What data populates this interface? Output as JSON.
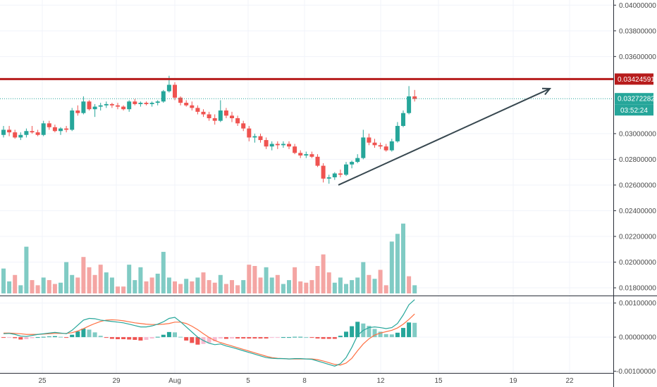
{
  "chart_data": [
    {
      "type": "candlestick",
      "xaxis_ticks": [
        "25",
        "29",
        "Aug",
        "5",
        "8",
        "12",
        "15",
        "19",
        "22"
      ],
      "ylim": [
        0.0174,
        0.0404
      ],
      "ytick_labels": [
        "0.04000000",
        "0.03800000",
        "0.03600000",
        "0.03424591",
        "0.03272282",
        "03:52:24",
        "0.03000000",
        "0.02800000",
        "0.02600000",
        "0.02400000",
        "0.02200000",
        "0.02000000",
        "0.01800000"
      ],
      "yticks": [
        0.04,
        0.038,
        0.036,
        0.03,
        0.028,
        0.026,
        0.024,
        0.022,
        0.02,
        0.018
      ],
      "resistance_level": 0.03424591,
      "last_price": 0.03272282,
      "countdown": "03:52:24",
      "colors": {
        "up": "#26a69a",
        "down": "#ef5350",
        "resistance": "#b71c1c",
        "arrow": "#37474f",
        "tag_bg": "#26a69a",
        "resistance_tag_bg": "#b71c1c"
      },
      "candles": [
        [
          0.0299,
          0.0306,
          0.0297,
          0.0303
        ],
        [
          0.0303,
          0.0306,
          0.0298,
          0.0301
        ],
        [
          0.0301,
          0.0303,
          0.0296,
          0.0297
        ],
        [
          0.0297,
          0.0301,
          0.0295,
          0.0299
        ],
        [
          0.0299,
          0.0304,
          0.0297,
          0.0302
        ],
        [
          0.0302,
          0.0306,
          0.03,
          0.0301
        ],
        [
          0.0301,
          0.0303,
          0.0298,
          0.0299
        ],
        [
          0.0299,
          0.031,
          0.0298,
          0.0308
        ],
        [
          0.0308,
          0.031,
          0.0303,
          0.0305
        ],
        [
          0.0305,
          0.0307,
          0.0301,
          0.0302
        ],
        [
          0.0302,
          0.0305,
          0.0299,
          0.0304
        ],
        [
          0.0304,
          0.0306,
          0.0301,
          0.0303
        ],
        [
          0.0303,
          0.032,
          0.0302,
          0.0318
        ],
        [
          0.0318,
          0.0322,
          0.0314,
          0.0316
        ],
        [
          0.0316,
          0.0329,
          0.0315,
          0.0325
        ],
        [
          0.0325,
          0.0326,
          0.0318,
          0.0319
        ],
        [
          0.0319,
          0.0323,
          0.0313,
          0.0321
        ],
        [
          0.0321,
          0.0324,
          0.0318,
          0.0322
        ],
        [
          0.0322,
          0.0325,
          0.032,
          0.0323
        ],
        [
          0.0323,
          0.0324,
          0.032,
          0.0322
        ],
        [
          0.0322,
          0.0324,
          0.0319,
          0.0321
        ],
        [
          0.0321,
          0.0322,
          0.0318,
          0.0319
        ],
        [
          0.0319,
          0.0326,
          0.0317,
          0.0325
        ],
        [
          0.0325,
          0.0327,
          0.0322,
          0.0323
        ],
        [
          0.0323,
          0.0325,
          0.0321,
          0.0324
        ],
        [
          0.0324,
          0.0325,
          0.0322,
          0.0323
        ],
        [
          0.0323,
          0.0325,
          0.0321,
          0.0324
        ],
        [
          0.0324,
          0.0326,
          0.0322,
          0.0325
        ],
        [
          0.0325,
          0.0334,
          0.0324,
          0.0333
        ],
        [
          0.0333,
          0.0345,
          0.0332,
          0.0338
        ],
        [
          0.0338,
          0.034,
          0.0326,
          0.0328
        ],
        [
          0.0328,
          0.0329,
          0.0322,
          0.0324
        ],
        [
          0.0324,
          0.0326,
          0.0321,
          0.0322
        ],
        [
          0.0322,
          0.0325,
          0.0318,
          0.032
        ],
        [
          0.032,
          0.0322,
          0.0315,
          0.0317
        ],
        [
          0.0317,
          0.0319,
          0.0313,
          0.0315
        ],
        [
          0.0315,
          0.0317,
          0.031,
          0.0312
        ],
        [
          0.0312,
          0.0315,
          0.0307,
          0.031
        ],
        [
          0.031,
          0.0326,
          0.0309,
          0.0318
        ],
        [
          0.0318,
          0.032,
          0.0312,
          0.0314
        ],
        [
          0.0314,
          0.0317,
          0.0309,
          0.0312
        ],
        [
          0.0312,
          0.0314,
          0.0306,
          0.0308
        ],
        [
          0.0308,
          0.031,
          0.0302,
          0.0304
        ],
        [
          0.0304,
          0.0306,
          0.0294,
          0.0297
        ],
        [
          0.0297,
          0.03,
          0.0293,
          0.0298
        ],
        [
          0.0298,
          0.03,
          0.0293,
          0.0295
        ],
        [
          0.0295,
          0.0297,
          0.0288,
          0.029
        ],
        [
          0.029,
          0.0294,
          0.0287,
          0.0292
        ],
        [
          0.0292,
          0.0294,
          0.0288,
          0.0291
        ],
        [
          0.0291,
          0.0294,
          0.0289,
          0.0292
        ],
        [
          0.0292,
          0.0294,
          0.0288,
          0.029
        ],
        [
          0.029,
          0.0292,
          0.0284,
          0.0285
        ],
        [
          0.0285,
          0.0287,
          0.0281,
          0.0283
        ],
        [
          0.0283,
          0.0286,
          0.0281,
          0.0284
        ],
        [
          0.0284,
          0.0286,
          0.0281,
          0.0282
        ],
        [
          0.0282,
          0.0284,
          0.0274,
          0.0275
        ],
        [
          0.0275,
          0.0277,
          0.0262,
          0.0265
        ],
        [
          0.0265,
          0.0268,
          0.0261,
          0.0266
        ],
        [
          0.0266,
          0.027,
          0.0264,
          0.0269
        ],
        [
          0.0269,
          0.0272,
          0.0266,
          0.0268
        ],
        [
          0.0268,
          0.0278,
          0.0267,
          0.0276
        ],
        [
          0.0276,
          0.0279,
          0.0273,
          0.0278
        ],
        [
          0.0278,
          0.0284,
          0.0277,
          0.0281
        ],
        [
          0.0281,
          0.0303,
          0.028,
          0.0297
        ],
        [
          0.0297,
          0.03,
          0.0291,
          0.0293
        ],
        [
          0.0293,
          0.0296,
          0.0289,
          0.0291
        ],
        [
          0.0291,
          0.0293,
          0.0288,
          0.029
        ],
        [
          0.029,
          0.0292,
          0.0286,
          0.0287
        ],
        [
          0.0287,
          0.0296,
          0.0286,
          0.0294
        ],
        [
          0.0294,
          0.0309,
          0.0293,
          0.0306
        ],
        [
          0.0306,
          0.0318,
          0.0305,
          0.0316
        ],
        [
          0.0316,
          0.0337,
          0.0315,
          0.0329
        ],
        [
          0.0329,
          0.0334,
          0.0325,
          0.0327
        ]
      ],
      "volumes": [
        [
          0.0195,
          "up"
        ],
        [
          0.0185,
          "up"
        ],
        [
          0.019,
          "down"
        ],
        [
          0.0182,
          "up"
        ],
        [
          0.0212,
          "up"
        ],
        [
          0.0186,
          "down"
        ],
        [
          0.0182,
          "down"
        ],
        [
          0.0188,
          "up"
        ],
        [
          0.0186,
          "down"
        ],
        [
          0.0183,
          "down"
        ],
        [
          0.0184,
          "up"
        ],
        [
          0.02,
          "up"
        ],
        [
          0.019,
          "up"
        ],
        [
          0.0188,
          "down"
        ],
        [
          0.0204,
          "down"
        ],
        [
          0.0196,
          "down"
        ],
        [
          0.019,
          "down"
        ],
        [
          0.0198,
          "down"
        ],
        [
          0.0192,
          "up"
        ],
        [
          0.0188,
          "up"
        ],
        [
          0.0181,
          "down"
        ],
        [
          0.0181,
          "down"
        ],
        [
          0.0198,
          "up"
        ],
        [
          0.0186,
          "up"
        ],
        [
          0.0196,
          "up"
        ],
        [
          0.0185,
          "down"
        ],
        [
          0.0188,
          "down"
        ],
        [
          0.0191,
          "up"
        ],
        [
          0.0208,
          "up"
        ],
        [
          0.0188,
          "up"
        ],
        [
          0.0185,
          "down"
        ],
        [
          0.0183,
          "down"
        ],
        [
          0.0187,
          "up"
        ],
        [
          0.0185,
          "down"
        ],
        [
          0.0188,
          "up"
        ],
        [
          0.0192,
          "down"
        ],
        [
          0.0186,
          "down"
        ],
        [
          0.0184,
          "down"
        ],
        [
          0.019,
          "up"
        ],
        [
          0.0183,
          "down"
        ],
        [
          0.0186,
          "down"
        ],
        [
          0.0182,
          "down"
        ],
        [
          0.0186,
          "up"
        ],
        [
          0.0198,
          "down"
        ],
        [
          0.0197,
          "down"
        ],
        [
          0.0188,
          "down"
        ],
        [
          0.0196,
          "up"
        ],
        [
          0.0188,
          "up"
        ],
        [
          0.019,
          "down"
        ],
        [
          0.0183,
          "up"
        ],
        [
          0.0186,
          "up"
        ],
        [
          0.0196,
          "down"
        ],
        [
          0.0185,
          "down"
        ],
        [
          0.0184,
          "down"
        ],
        [
          0.0186,
          "down"
        ],
        [
          0.0197,
          "down"
        ],
        [
          0.0206,
          "down"
        ],
        [
          0.0192,
          "down"
        ],
        [
          0.0184,
          "up"
        ],
        [
          0.0188,
          "up"
        ],
        [
          0.0183,
          "up"
        ],
        [
          0.0186,
          "up"
        ],
        [
          0.0188,
          "up"
        ],
        [
          0.02,
          "up"
        ],
        [
          0.019,
          "down"
        ],
        [
          0.0187,
          "up"
        ],
        [
          0.0194,
          "down"
        ],
        [
          0.0182,
          "down"
        ],
        [
          0.0216,
          "up"
        ],
        [
          0.0222,
          "up"
        ],
        [
          0.023,
          "up"
        ],
        [
          0.0189,
          "down"
        ],
        [
          0.0182,
          "up"
        ]
      ]
    },
    {
      "type": "macd",
      "ylim": [
        -0.00105,
        0.0012
      ],
      "ytick_labels": [
        "0.00100000",
        "0.00000000",
        "-0.00100000"
      ],
      "yticks": [
        0.001,
        0.0,
        -0.001
      ],
      "colors": {
        "macd": "#26a69a",
        "signal": "#ff7043",
        "hist_up_strong": "#26a69a",
        "hist_up_weak": "#80cbc4",
        "hist_down_strong": "#ef5350",
        "hist_down_weak": "#f8bbd0"
      },
      "macd": [
        0.0001,
        0.00011,
        8e-05,
        3e-05,
        2e-05,
        5e-05,
        8e-05,
        0.0001,
        0.00012,
        0.00014,
        0.00012,
        0.0001,
        0.0002,
        0.00035,
        0.0005,
        0.00055,
        0.00054,
        0.0005,
        0.00048,
        0.00046,
        0.00044,
        0.00042,
        0.00038,
        0.00034,
        0.0003,
        0.0003,
        0.00033,
        0.00038,
        0.00045,
        0.00055,
        0.00058,
        0.00045,
        0.0003,
        0.00015,
        0.0,
        -0.0001,
        -0.00018,
        -0.00022,
        -0.0002,
        -0.00026,
        -0.0003,
        -0.00035,
        -0.0004,
        -0.00045,
        -0.0005,
        -0.00055,
        -0.0006,
        -0.00062,
        -0.00063,
        -0.00063,
        -0.00064,
        -0.00063,
        -0.00063,
        -0.00064,
        -0.00065,
        -0.0007,
        -0.00075,
        -0.0008,
        -0.00085,
        -0.00078,
        -0.0006,
        -0.0003,
        5e-05,
        0.0002,
        0.00028,
        0.0003,
        0.00028,
        0.00025,
        0.00028,
        0.0004,
        0.00065,
        0.00095,
        0.0011
      ],
      "signal": [
        0.00012,
        0.00012,
        0.00011,
        0.0001,
        8e-05,
        8e-05,
        8e-05,
        9e-05,
        0.0001,
        0.00011,
        0.00011,
        0.00011,
        0.00013,
        0.00018,
        0.00025,
        0.00033,
        0.0004,
        0.00046,
        0.0005,
        0.00051,
        0.0005,
        0.00048,
        0.00045,
        0.00042,
        0.0004,
        0.00038,
        0.00037,
        0.00037,
        0.00038,
        0.0004,
        0.00044,
        0.00044,
        0.0004,
        0.00032,
        0.00022,
        0.0001,
        -1e-05,
        -0.0001,
        -0.00016,
        -0.00021,
        -0.00026,
        -0.00031,
        -0.00036,
        -0.00041,
        -0.00046,
        -0.00051,
        -0.00056,
        -0.0006,
        -0.00062,
        -0.00063,
        -0.00064,
        -0.00064,
        -0.00064,
        -0.00064,
        -0.00064,
        -0.00066,
        -0.0007,
        -0.00075,
        -0.0008,
        -0.00082,
        -0.00076,
        -0.00062,
        -0.0004,
        -0.0002,
        -5e-05,
        6e-05,
        0.00012,
        0.00016,
        0.0002,
        0.00027,
        0.00038,
        0.00052,
        0.00068
      ],
      "histogram": [
        -2e-05,
        -1e-05,
        -3e-05,
        -7e-05,
        -6e-05,
        -3e-05,
        0.0,
        1e-05,
        2e-05,
        3e-05,
        1e-05,
        -1e-05,
        7e-05,
        0.00017,
        0.00025,
        0.00022,
        0.00014,
        4e-05,
        -2e-05,
        -5e-05,
        -6e-05,
        -6e-05,
        -7e-05,
        -8e-05,
        -0.0001,
        -8e-05,
        -4e-05,
        1e-05,
        7e-05,
        0.00015,
        0.00014,
        1e-05,
        -0.0001,
        -0.00017,
        -0.00022,
        -0.0002,
        -0.00017,
        -0.00012,
        -4e-05,
        -5e-05,
        -4e-05,
        -4e-05,
        -4e-05,
        -4e-05,
        -4e-05,
        -4e-05,
        -4e-05,
        -2e-05,
        -1e-05,
        0.0,
        0.0,
        1e-05,
        1e-05,
        0.0,
        -1e-05,
        -4e-05,
        -5e-05,
        -5e-05,
        -5e-05,
        4e-05,
        0.00016,
        0.00032,
        0.00045,
        0.0004,
        0.00033,
        0.00024,
        0.00016,
        9e-05,
        8e-05,
        0.00013,
        0.00027,
        0.00043,
        0.00042
      ]
    }
  ]
}
